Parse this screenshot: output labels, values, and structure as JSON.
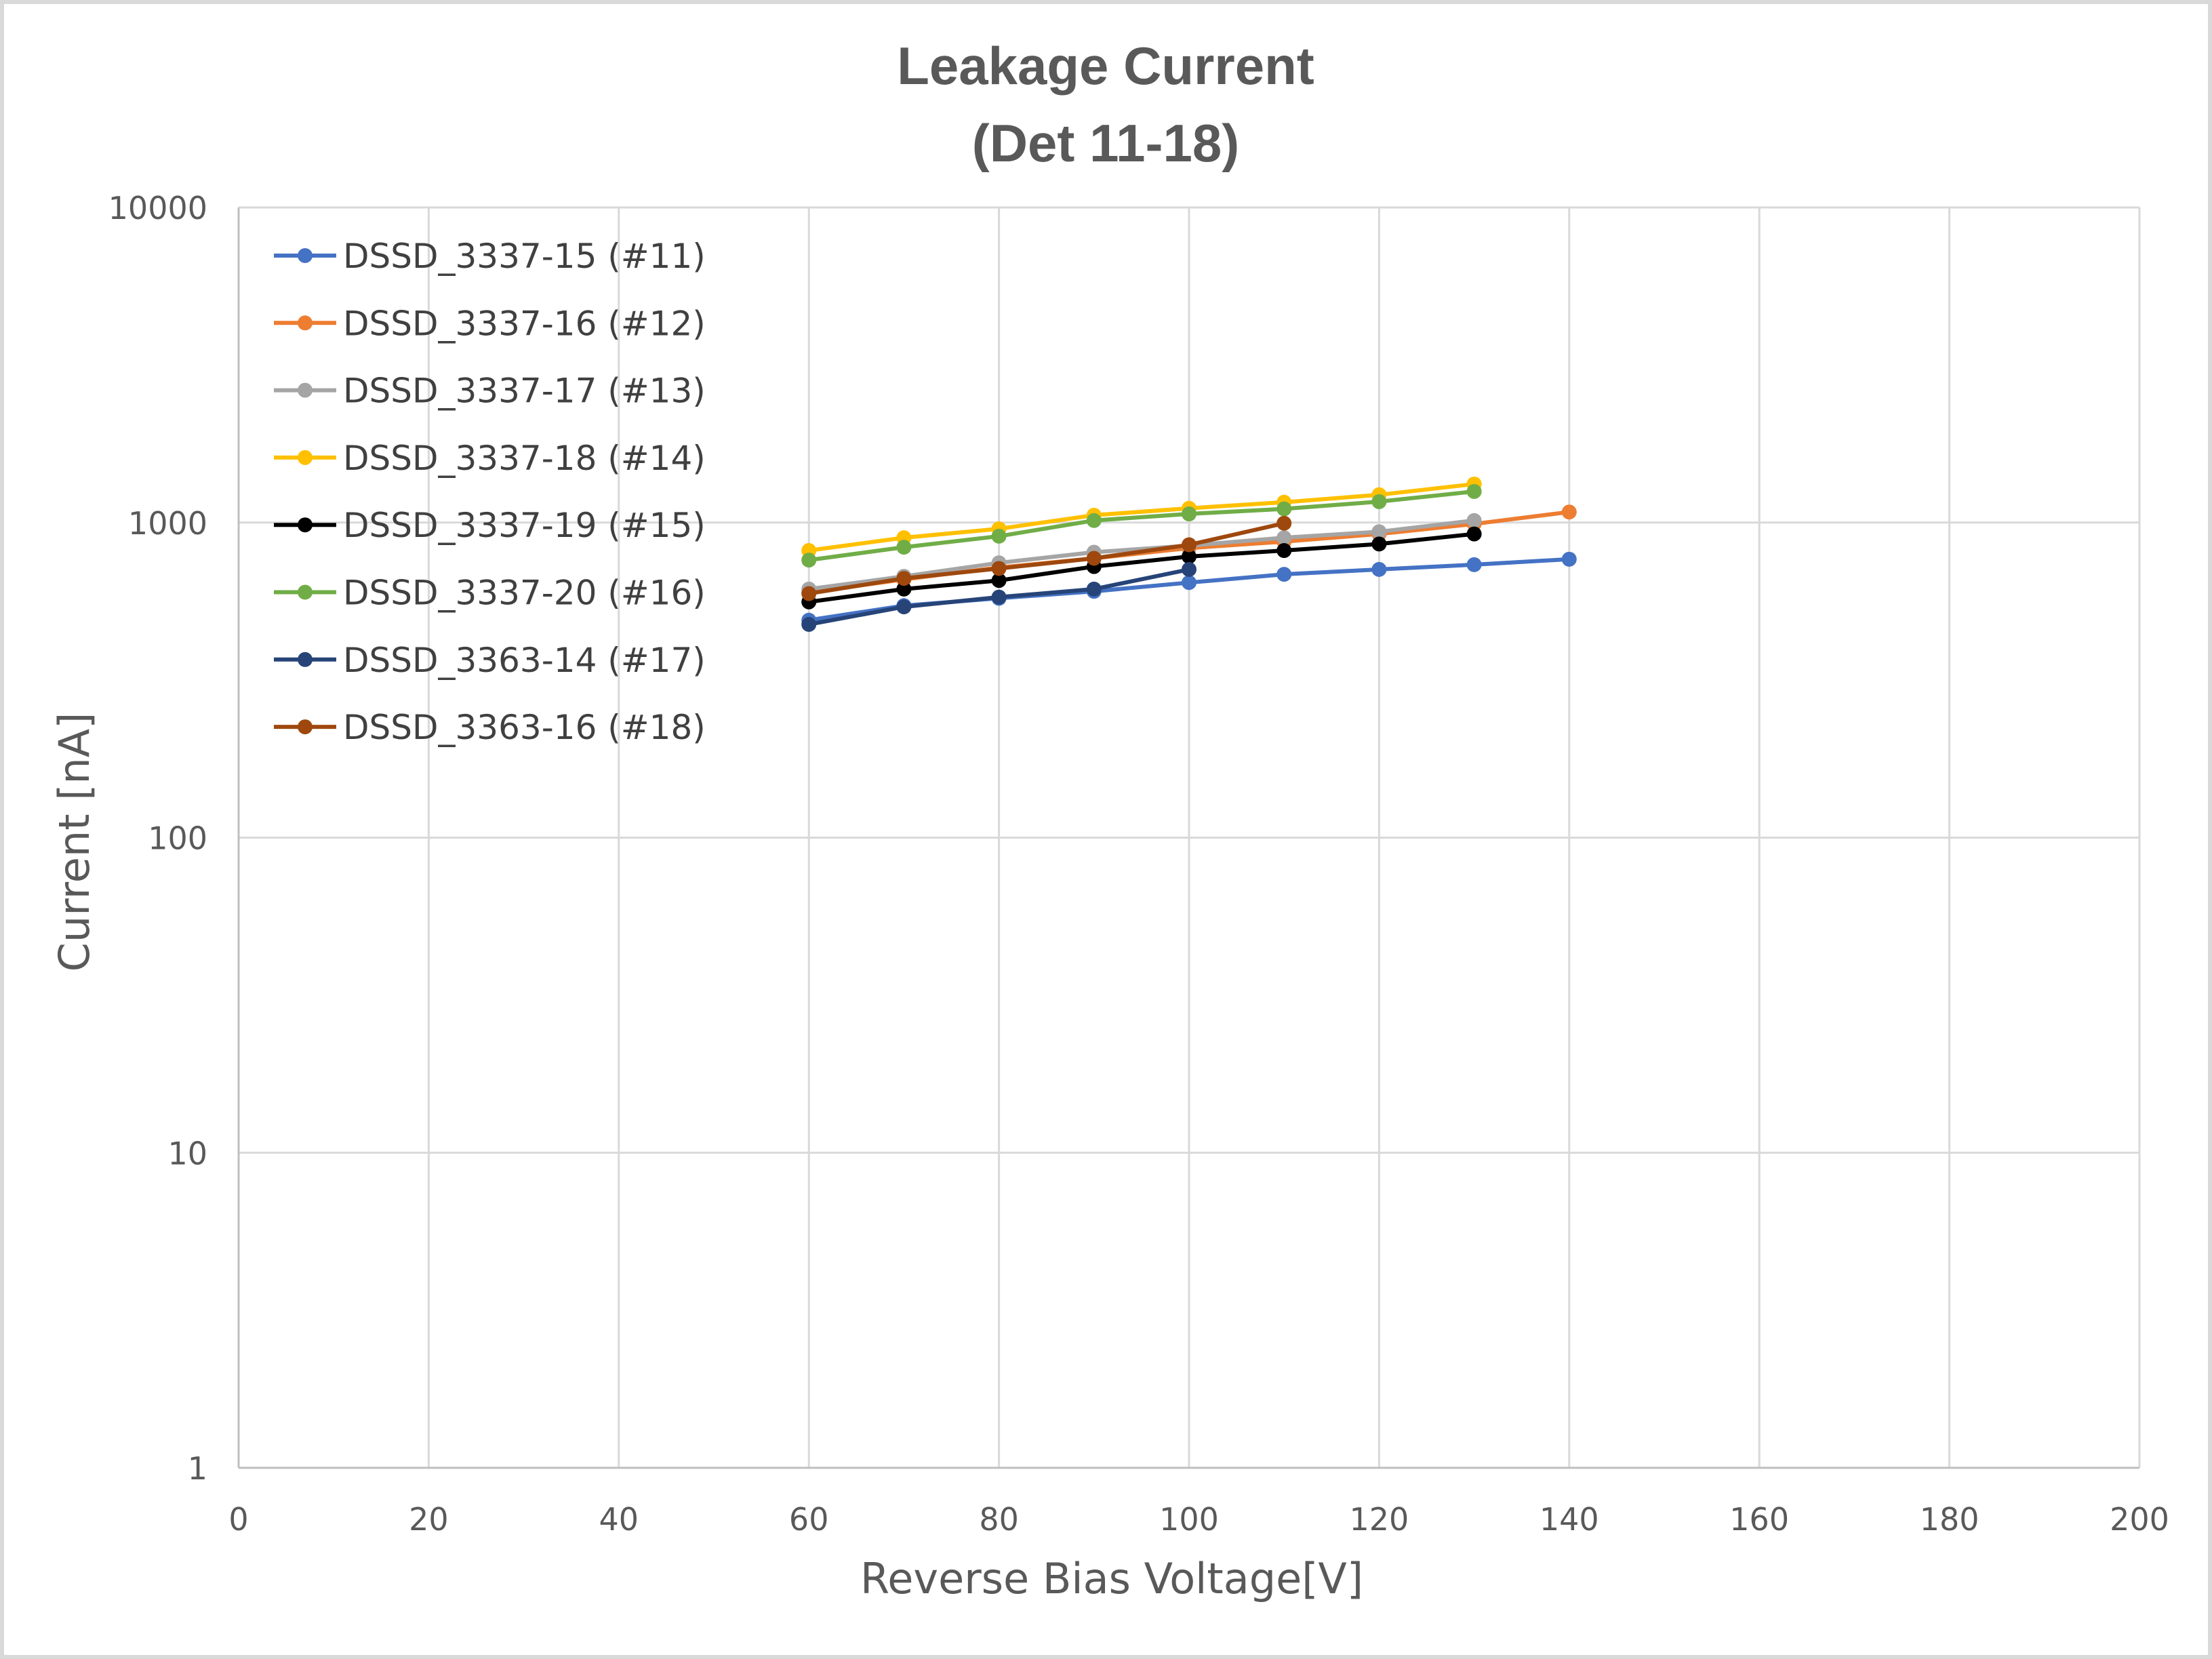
{
  "chart_data": {
    "type": "line",
    "title_lines": [
      "Leakage Current",
      "(Det 11-18)"
    ],
    "xlabel": "Reverse Bias Voltage[V]",
    "ylabel": "Current [nA]",
    "xlim": [
      0,
      200
    ],
    "x_ticks": [
      0,
      20,
      40,
      60,
      80,
      100,
      120,
      140,
      160,
      180,
      200
    ],
    "x_tick_labels": [
      "0",
      "20",
      "40",
      "60",
      "80",
      "100",
      "120",
      "140",
      "160",
      "180",
      "200"
    ],
    "ylim": [
      1,
      10000
    ],
    "y_scale": "log",
    "y_ticks": [
      1,
      10,
      100,
      1000,
      10000
    ],
    "y_tick_labels": [
      "1",
      "10",
      "100",
      "1000",
      "10000"
    ],
    "grid": true,
    "legend_position": "top-left",
    "series": [
      {
        "name": "DSSD_3337-15 (#11)",
        "color": "#4472C4",
        "x": [
          60,
          70,
          80,
          90,
          100,
          110,
          120,
          130,
          140
        ],
        "y": [
          490,
          545,
          575,
          605,
          645,
          685,
          710,
          735,
          765
        ]
      },
      {
        "name": "DSSD_3337-16 (#12)",
        "color": "#ED7D31",
        "x": [
          60,
          70,
          80,
          90,
          100,
          110,
          120,
          130,
          140
        ],
        "y": [
          600,
          660,
          720,
          770,
          830,
          870,
          920,
          990,
          1080
        ]
      },
      {
        "name": "DSSD_3337-17 (#13)",
        "color": "#A5A5A5",
        "x": [
          60,
          70,
          80,
          90,
          100,
          110,
          120,
          130
        ],
        "y": [
          615,
          675,
          745,
          805,
          845,
          895,
          935,
          1015
        ]
      },
      {
        "name": "DSSD_3337-18 (#14)",
        "color": "#FFC000",
        "x": [
          60,
          70,
          80,
          90,
          100,
          110,
          120,
          130
        ],
        "y": [
          815,
          895,
          955,
          1055,
          1110,
          1160,
          1225,
          1325
        ]
      },
      {
        "name": "DSSD_3337-19 (#15)",
        "color": "#000000",
        "x": [
          60,
          70,
          80,
          90,
          100,
          110,
          120,
          130
        ],
        "y": [
          560,
          615,
          655,
          725,
          780,
          815,
          855,
          920
        ]
      },
      {
        "name": "DSSD_3337-20 (#16)",
        "color": "#70AD47",
        "x": [
          60,
          70,
          80,
          90,
          100,
          110,
          120,
          130
        ],
        "y": [
          760,
          835,
          905,
          1015,
          1065,
          1105,
          1165,
          1255
        ]
      },
      {
        "name": "DSSD_3363-14 (#17)",
        "color": "#264478",
        "x": [
          60,
          70,
          80,
          90,
          100
        ],
        "y": [
          475,
          540,
          580,
          615,
          710
        ]
      },
      {
        "name": "DSSD_3363-16 (#18)",
        "color": "#9E480E",
        "x": [
          60,
          70,
          80,
          90,
          100,
          110
        ],
        "y": [
          595,
          665,
          715,
          770,
          850,
          995
        ]
      }
    ]
  },
  "style": {
    "gridline_color": "#d9d9d9",
    "axis_color": "#bfbfbf",
    "text_color": "#595959"
  }
}
